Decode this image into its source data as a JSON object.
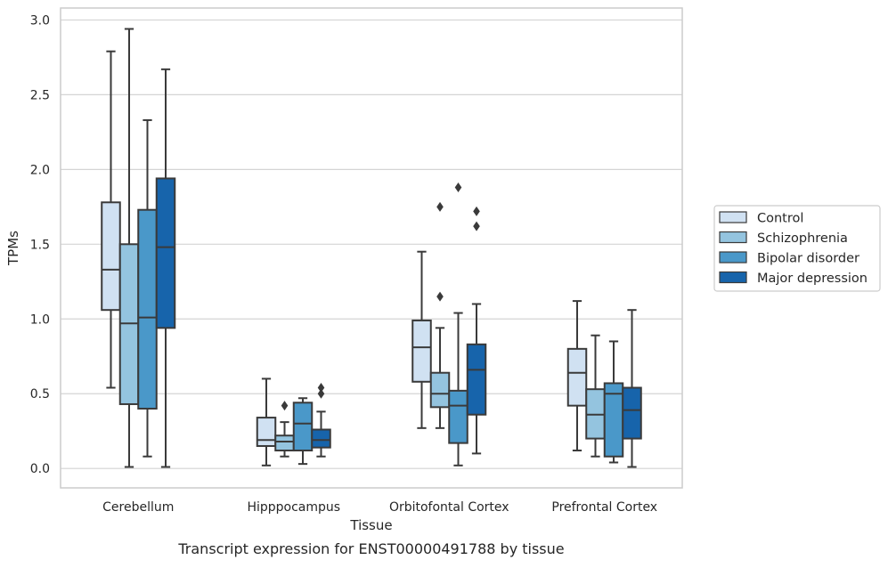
{
  "chart_data": {
    "type": "boxplot",
    "title": "",
    "caption": "Transcript expression for ENST00000491788 by tissue",
    "xlabel": "Tissue",
    "ylabel": "TPMs",
    "ylim": [
      -0.13,
      3.08
    ],
    "yticks": [
      0.0,
      0.5,
      1.0,
      1.5,
      2.0,
      2.5,
      3.0
    ],
    "ytick_labels": [
      "0.0",
      "0.5",
      "1.0",
      "1.5",
      "2.0",
      "2.5",
      "3.0"
    ],
    "grid": "horizontal",
    "legend_position": "right",
    "categories": [
      "Cerebellum",
      "Hipppocampus",
      "Orbitofontal Cortex",
      "Prefrontal Cortex"
    ],
    "series": [
      {
        "name": "Control",
        "color": "#d0e1f2",
        "boxes": [
          {
            "whisker_low": 0.54,
            "q1": 1.06,
            "median": 1.33,
            "q3": 1.78,
            "whisker_high": 2.79,
            "outliers": []
          },
          {
            "whisker_low": 0.02,
            "q1": 0.15,
            "median": 0.19,
            "q3": 0.34,
            "whisker_high": 0.6,
            "outliers": []
          },
          {
            "whisker_low": 0.27,
            "q1": 0.58,
            "median": 0.81,
            "q3": 0.99,
            "whisker_high": 1.45,
            "outliers": []
          },
          {
            "whisker_low": 0.12,
            "q1": 0.42,
            "median": 0.64,
            "q3": 0.8,
            "whisker_high": 1.12,
            "outliers": []
          }
        ]
      },
      {
        "name": "Schizophrenia",
        "color": "#94c4df",
        "boxes": [
          {
            "whisker_low": 0.01,
            "q1": 0.43,
            "median": 0.97,
            "q3": 1.5,
            "whisker_high": 2.94,
            "outliers": []
          },
          {
            "whisker_low": 0.08,
            "q1": 0.12,
            "median": 0.18,
            "q3": 0.22,
            "whisker_high": 0.31,
            "outliers": [
              0.42
            ]
          },
          {
            "whisker_low": 0.27,
            "q1": 0.41,
            "median": 0.5,
            "q3": 0.64,
            "whisker_high": 0.94,
            "outliers": [
              1.15,
              1.75
            ]
          },
          {
            "whisker_low": 0.08,
            "q1": 0.2,
            "median": 0.36,
            "q3": 0.53,
            "whisker_high": 0.89,
            "outliers": []
          }
        ]
      },
      {
        "name": "Bipolar disorder",
        "color": "#4a98c9",
        "boxes": [
          {
            "whisker_low": 0.08,
            "q1": 0.4,
            "median": 1.01,
            "q3": 1.73,
            "whisker_high": 2.33,
            "outliers": []
          },
          {
            "whisker_low": 0.03,
            "q1": 0.12,
            "median": 0.3,
            "q3": 0.44,
            "whisker_high": 0.47,
            "outliers": []
          },
          {
            "whisker_low": 0.02,
            "q1": 0.17,
            "median": 0.42,
            "q3": 0.52,
            "whisker_high": 1.04,
            "outliers": [
              1.88
            ]
          },
          {
            "whisker_low": 0.04,
            "q1": 0.08,
            "median": 0.5,
            "q3": 0.57,
            "whisker_high": 0.85,
            "outliers": []
          }
        ]
      },
      {
        "name": "Major depression",
        "color": "#1764ab",
        "boxes": [
          {
            "whisker_low": 0.01,
            "q1": 0.94,
            "median": 1.48,
            "q3": 1.94,
            "whisker_high": 2.67,
            "outliers": []
          },
          {
            "whisker_low": 0.08,
            "q1": 0.14,
            "median": 0.19,
            "q3": 0.26,
            "whisker_high": 0.38,
            "outliers": [
              0.5,
              0.54
            ]
          },
          {
            "whisker_low": 0.1,
            "q1": 0.36,
            "median": 0.66,
            "q3": 0.83,
            "whisker_high": 1.1,
            "outliers": [
              1.62,
              1.72
            ]
          },
          {
            "whisker_low": 0.01,
            "q1": 0.2,
            "median": 0.39,
            "q3": 0.54,
            "whisker_high": 1.06,
            "outliers": []
          }
        ]
      }
    ]
  }
}
